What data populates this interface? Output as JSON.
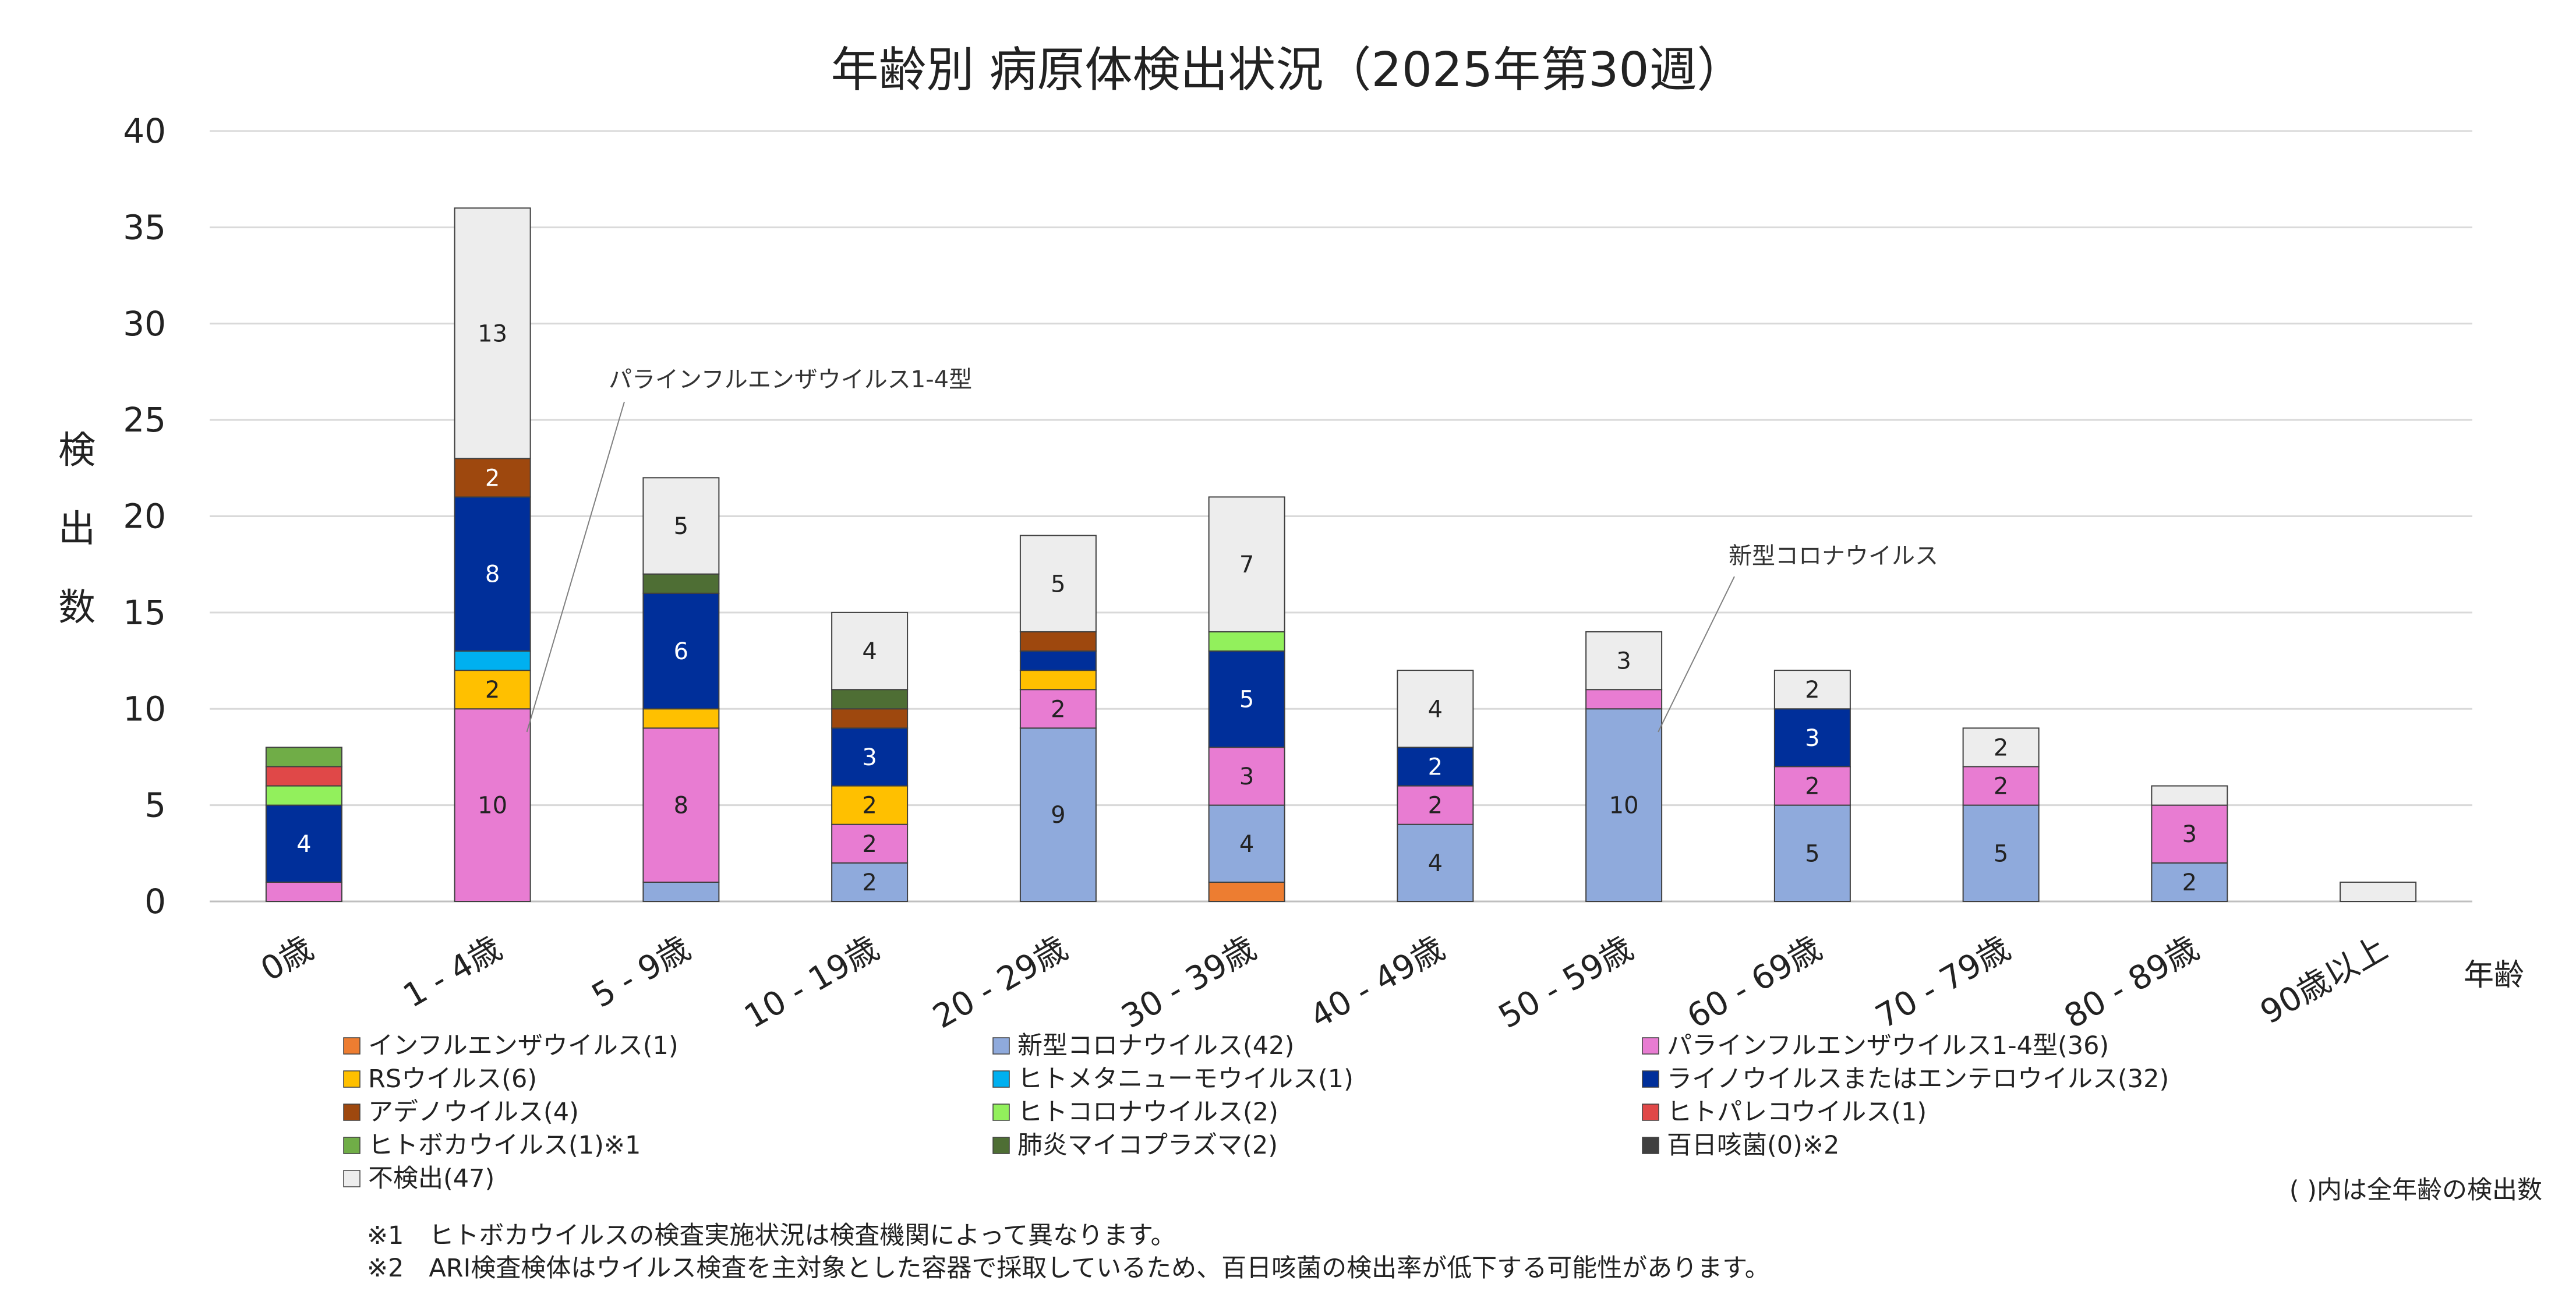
{
  "chart_data": {
    "type": "bar",
    "stacked": true,
    "title": "年齢別 病原体検出状況（2025年第30週）",
    "ylabel": "検出数",
    "xlabel": "年齢",
    "ylim": [
      0,
      40
    ],
    "yticks": [
      0,
      5,
      10,
      15,
      20,
      25,
      30,
      35,
      40
    ],
    "grid": true,
    "categories": [
      "0歳",
      "1 - 4歳",
      "5 - 9歳",
      "10 - 19歳",
      "20 - 29歳",
      "30 - 39歳",
      "40 - 49歳",
      "50 - 59歳",
      "60 - 69歳",
      "70 - 79歳",
      "80 - 89歳",
      "90歳以上"
    ],
    "series": [
      {
        "name": "インフルエンザウイルス(1)",
        "color": "#ED7D31",
        "values": [
          0,
          0,
          0,
          0,
          0,
          1,
          0,
          0,
          0,
          0,
          0,
          0
        ]
      },
      {
        "name": "新型コロナウイルス(42)",
        "color": "#8FAADC",
        "values": [
          0,
          0,
          1,
          2,
          9,
          4,
          4,
          10,
          5,
          5,
          2,
          0
        ]
      },
      {
        "name": "パラインフルエンザウイルス1-4型(36)",
        "color": "#E87CD2",
        "values": [
          1,
          10,
          8,
          2,
          2,
          3,
          2,
          1,
          2,
          2,
          3,
          0
        ]
      },
      {
        "name": "RSウイルス(6)",
        "color": "#FFC000",
        "values": [
          0,
          2,
          1,
          2,
          1,
          0,
          0,
          0,
          0,
          0,
          0,
          0
        ]
      },
      {
        "name": "ヒトメタニューモウイルス(1)",
        "color": "#00B0F0",
        "values": [
          0,
          1,
          0,
          0,
          0,
          0,
          0,
          0,
          0,
          0,
          0,
          0
        ]
      },
      {
        "name": "ライノウイルスまたはエンテロウイルス(32)",
        "color": "#002F9A",
        "values": [
          4,
          8,
          6,
          3,
          1,
          5,
          2,
          0,
          3,
          0,
          0,
          0
        ]
      },
      {
        "name": "アデノウイルス(4)",
        "color": "#9E480E",
        "values": [
          0,
          2,
          0,
          1,
          1,
          0,
          0,
          0,
          0,
          0,
          0,
          0
        ]
      },
      {
        "name": "ヒトコロナウイルス(2)",
        "color": "#92F05C",
        "values": [
          1,
          0,
          0,
          0,
          0,
          1,
          0,
          0,
          0,
          0,
          0,
          0
        ]
      },
      {
        "name": "ヒトパレコウイルス(1)",
        "color": "#E04848",
        "values": [
          1,
          0,
          0,
          0,
          0,
          0,
          0,
          0,
          0,
          0,
          0,
          0
        ]
      },
      {
        "name": "ヒトボカウイルス(1)※1",
        "color": "#70AD47",
        "values": [
          1,
          0,
          0,
          0,
          0,
          0,
          0,
          0,
          0,
          0,
          0,
          0
        ]
      },
      {
        "name": "肺炎マイコプラズマ(2)",
        "color": "#4E6E34",
        "values": [
          0,
          0,
          1,
          1,
          0,
          0,
          0,
          0,
          0,
          0,
          0,
          0
        ]
      },
      {
        "name": "百日咳菌(0)※2",
        "color": "#404040",
        "values": [
          0,
          0,
          0,
          0,
          0,
          0,
          0,
          0,
          0,
          0,
          0,
          0
        ]
      },
      {
        "name": "不検出(47)",
        "color": "#EDEDED",
        "values": [
          0,
          13,
          5,
          4,
          5,
          7,
          4,
          3,
          2,
          2,
          1,
          1
        ]
      }
    ],
    "data_labels": [
      {
        "category": "0歳",
        "series": "ライノウイルスまたはエンテロウイルス(32)",
        "text": "4"
      },
      {
        "category": "1 - 4歳",
        "series": "パラインフルエンザウイルス1-4型(36)",
        "text": "10"
      },
      {
        "category": "1 - 4歳",
        "series": "RSウイルス(6)",
        "text": "2"
      },
      {
        "category": "1 - 4歳",
        "series": "ライノウイルスまたはエンテロウイルス(32)",
        "text": "8"
      },
      {
        "category": "1 - 4歳",
        "series": "アデノウイルス(4)",
        "text": "2"
      },
      {
        "category": "1 - 4歳",
        "series": "不検出(47)",
        "text": "13"
      },
      {
        "category": "5 - 9歳",
        "series": "パラインフルエンザウイルス1-4型(36)",
        "text": "8"
      },
      {
        "category": "5 - 9歳",
        "series": "ライノウイルスまたはエンテロウイルス(32)",
        "text": "6"
      },
      {
        "category": "5 - 9歳",
        "series": "不検出(47)",
        "text": "5"
      },
      {
        "category": "10 - 19歳",
        "series": "新型コロナウイルス(42)",
        "text": "2"
      },
      {
        "category": "10 - 19歳",
        "series": "パラインフルエンザウイルス1-4型(36)",
        "text": "2"
      },
      {
        "category": "10 - 19歳",
        "series": "RSウイルス(6)",
        "text": "2"
      },
      {
        "category": "10 - 19歳",
        "series": "ライノウイルスまたはエンテロウイルス(32)",
        "text": "3"
      },
      {
        "category": "10 - 19歳",
        "series": "不検出(47)",
        "text": "4"
      },
      {
        "category": "20 - 29歳",
        "series": "新型コロナウイルス(42)",
        "text": "9"
      },
      {
        "category": "20 - 29歳",
        "series": "パラインフルエンザウイルス1-4型(36)",
        "text": "2"
      },
      {
        "category": "20 - 29歳",
        "series": "不検出(47)",
        "text": "5"
      },
      {
        "category": "30 - 39歳",
        "series": "新型コロナウイルス(42)",
        "text": "4"
      },
      {
        "category": "30 - 39歳",
        "series": "パラインフルエンザウイルス1-4型(36)",
        "text": "3"
      },
      {
        "category": "30 - 39歳",
        "series": "ライノウイルスまたはエンテロウイルス(32)",
        "text": "5"
      },
      {
        "category": "30 - 39歳",
        "series": "不検出(47)",
        "text": "7"
      },
      {
        "category": "40 - 49歳",
        "series": "新型コロナウイルス(42)",
        "text": "4"
      },
      {
        "category": "40 - 49歳",
        "series": "パラインフルエンザウイルス1-4型(36)",
        "text": "2"
      },
      {
        "category": "40 - 49歳",
        "series": "ライノウイルスまたはエンテロウイルス(32)",
        "text": "2"
      },
      {
        "category": "40 - 49歳",
        "series": "不検出(47)",
        "text": "4"
      },
      {
        "category": "50 - 59歳",
        "series": "新型コロナウイルス(42)",
        "text": "10"
      },
      {
        "category": "50 - 59歳",
        "series": "不検出(47)",
        "text": "3"
      },
      {
        "category": "60 - 69歳",
        "series": "新型コロナウイルス(42)",
        "text": "5"
      },
      {
        "category": "60 - 69歳",
        "series": "パラインフルエンザウイルス1-4型(36)",
        "text": "2"
      },
      {
        "category": "60 - 69歳",
        "series": "ライノウイルスまたはエンテロウイルス(32)",
        "text": "3"
      },
      {
        "category": "60 - 69歳",
        "series": "不検出(47)",
        "text": "2"
      },
      {
        "category": "70 - 79歳",
        "series": "新型コロナウイルス(42)",
        "text": "5"
      },
      {
        "category": "70 - 79歳",
        "series": "パラインフルエンザウイルス1-4型(36)",
        "text": "2"
      },
      {
        "category": "70 - 79歳",
        "series": "不検出(47)",
        "text": "2"
      },
      {
        "category": "80 - 89歳",
        "series": "新型コロナウイルス(42)",
        "text": "2"
      },
      {
        "category": "80 - 89歳",
        "series": "パラインフルエンザウイルス1-4型(36)",
        "text": "3"
      }
    ],
    "annotations": [
      {
        "text": "パラインフルエンザウイルス1-4型",
        "category": "1 - 4歳",
        "series": "パラインフルエンザウイルス1-4型(36)"
      },
      {
        "text": "新型コロナウイルス",
        "category": "50 - 59歳",
        "series": "新型コロナウイルス(42)"
      }
    ],
    "legend_position": "bottom",
    "legend_note": "( )内は全年齢の検出数",
    "footnotes": [
      "※1　ヒトボカウイルスの検査実施状況は検査機関によって異なります。",
      "※2　ARI検査検体はウイルス検査を主対象とした容器で採取しているため、百日咳菌の検出率が低下する可能性があります。"
    ]
  }
}
